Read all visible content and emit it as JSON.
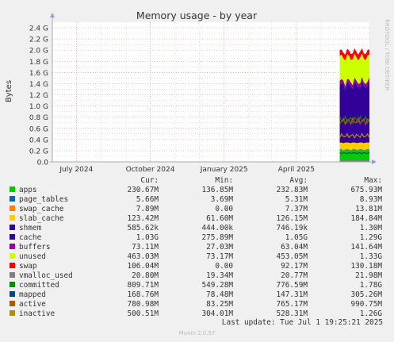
{
  "chart_data": {
    "type": "area",
    "title": "Memory usage - by year",
    "ylabel": "Bytes",
    "side_label": "RRDTOOL / TOBI OETIKER",
    "y_ticks": [
      "0.0",
      "0.2 G",
      "0.4 G",
      "0.6 G",
      "0.8 G",
      "1.0 G",
      "1.2 G",
      "1.4 G",
      "1.6 G",
      "1.8 G",
      "2.0 G",
      "2.2 G",
      "2.4 G"
    ],
    "y_tick_values": [
      0,
      0.2,
      0.4,
      0.6,
      0.8,
      1.0,
      1.2,
      1.4,
      1.6,
      1.8,
      2.0,
      2.2,
      2.4
    ],
    "ylim": [
      0,
      2.5
    ],
    "x_labels": [
      "July 2024",
      "October 2024",
      "January 2025",
      "April 2025"
    ],
    "x_label_dates": [
      "2024-07-01",
      "2024-10-01",
      "2025-01-01",
      "2025-04-01"
    ],
    "x_range": [
      "2024-06-01",
      "2025-07-01"
    ],
    "data_start": "2025-05-25",
    "data_end": "2025-07-01",
    "units": "G (2^30 bytes)",
    "stack_order": [
      "apps",
      "page_tables",
      "swap_cache",
      "slab_cache",
      "shmem",
      "cache",
      "buffers",
      "unused",
      "swap"
    ],
    "stack_latest_G": {
      "apps": 0.215,
      "page_tables": 0.005,
      "swap_cache": 0.007,
      "slab_cache": 0.115,
      "shmem": 0.001,
      "cache": 1.03,
      "buffers": 0.068,
      "unused": 0.431,
      "swap": 0.099
    },
    "line_series": [
      "vmalloc_used",
      "committed",
      "mapped",
      "active",
      "inactive"
    ],
    "line_latest_G": {
      "vmalloc_used": 0.019,
      "committed": 0.754,
      "mapped": 0.157,
      "active": 0.727,
      "inactive": 0.466
    },
    "legend_header": {
      "cur": "Cur:",
      "min": "Min:",
      "avg": "Avg:",
      "max": "Max:"
    },
    "legend": [
      {
        "name": "apps",
        "color": "#00cc00",
        "cur": "230.67M",
        "min": "136.85M",
        "avg": "232.83M",
        "max": "675.93M"
      },
      {
        "name": "page_tables",
        "color": "#0066b3",
        "cur": "5.66M",
        "min": "3.69M",
        "avg": "5.31M",
        "max": "8.93M"
      },
      {
        "name": "swap_cache",
        "color": "#ff8000",
        "cur": "7.89M",
        "min": "0.00",
        "avg": "7.37M",
        "max": "13.81M"
      },
      {
        "name": "slab_cache",
        "color": "#ffcc00",
        "cur": "123.42M",
        "min": "61.60M",
        "avg": "126.15M",
        "max": "184.84M"
      },
      {
        "name": "shmem",
        "color": "#330099",
        "cur": "585.62k",
        "min": "444.00k",
        "avg": "746.19k",
        "max": "1.30M"
      },
      {
        "name": "cache",
        "color": "#330099",
        "cur": "1.03G",
        "min": "275.89M",
        "avg": "1.05G",
        "max": "1.29G"
      },
      {
        "name": "buffers",
        "color": "#990099",
        "cur": "73.11M",
        "min": "27.03M",
        "avg": "63.04M",
        "max": "141.64M"
      },
      {
        "name": "unused",
        "color": "#ccff00",
        "cur": "463.03M",
        "min": "73.17M",
        "avg": "453.05M",
        "max": "1.33G"
      },
      {
        "name": "swap",
        "color": "#ff0000",
        "cur": "106.04M",
        "min": "0.00",
        "avg": "92.17M",
        "max": "130.18M"
      },
      {
        "name": "vmalloc_used",
        "color": "#808080",
        "cur": "20.80M",
        "min": "19.34M",
        "avg": "20.77M",
        "max": "21.98M"
      },
      {
        "name": "committed",
        "color": "#008f00",
        "cur": "809.71M",
        "min": "549.28M",
        "avg": "776.59M",
        "max": "1.78G"
      },
      {
        "name": "mapped",
        "color": "#00487d",
        "cur": "168.76M",
        "min": "78.48M",
        "avg": "147.31M",
        "max": "305.26M"
      },
      {
        "name": "active",
        "color": "#b35a00",
        "cur": "780.98M",
        "min": "83.25M",
        "avg": "765.17M",
        "max": "990.75M"
      },
      {
        "name": "inactive",
        "color": "#b38f00",
        "cur": "500.51M",
        "min": "304.01M",
        "avg": "528.31M",
        "max": "1.26G"
      }
    ],
    "grid": true
  },
  "footer": {
    "last_update": "Last update: Tue Jul  1 19:25:21 2025",
    "version": "Munin 2.0.57"
  }
}
